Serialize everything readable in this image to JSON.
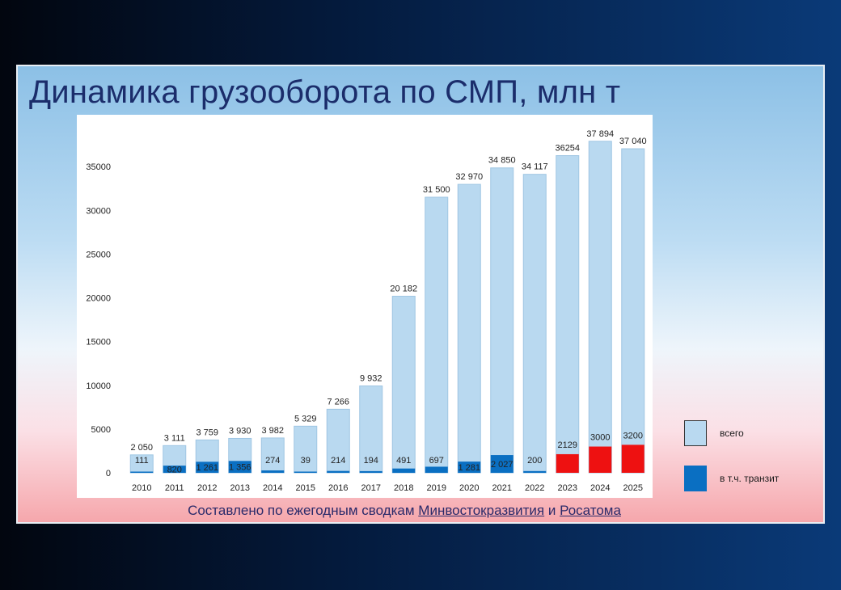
{
  "slide": {
    "title": "Динамика грузооборота по СМП, млн т",
    "source": {
      "prefix": "Составлено по ежегодным сводкам",
      "link1": "Минвостокразвития",
      "conjunction": "и",
      "link2": "Росатома"
    }
  },
  "colors": {
    "total": "#b9d9f0",
    "total_border": "#9fc6e3",
    "transit": "#0a6fc2",
    "forecast": "#ee1111"
  },
  "chart_data": {
    "type": "bar",
    "title": "Динамика грузооборота по СМП, млн т",
    "categories": [
      "2010",
      "2011",
      "2012",
      "2013",
      "2014",
      "2015",
      "2016",
      "2017",
      "2018",
      "2019",
      "2020",
      "2021",
      "2022",
      "2023",
      "2024",
      "2025"
    ],
    "series": [
      {
        "name": "всего",
        "values": [
          2050,
          3111,
          3759,
          3930,
          3982,
          5329,
          7266,
          9932,
          20182,
          31500,
          32970,
          34850,
          34117,
          36254,
          37894,
          37040
        ],
        "labels": [
          "2 050",
          "3 111",
          "3 759",
          "3 930",
          "3 982",
          "5 329",
          "7 266",
          "9 932",
          "20 182",
          "31 500",
          "32 970",
          "34 850",
          "34 117",
          "36254",
          "37 894",
          "37 040"
        ]
      },
      {
        "name": "в т.ч. транзит",
        "values": [
          111,
          820,
          1261,
          1356,
          274,
          39,
          214,
          194,
          491,
          697,
          1281,
          2027,
          200,
          2129,
          3000,
          3200
        ],
        "labels": [
          "111",
          "820",
          "1 261",
          "1 356",
          "274",
          "39",
          "214",
          "194",
          "491",
          "697",
          "1 281",
          "2 027",
          "200",
          "2129",
          "3000",
          "3200"
        ],
        "forecast_from_index": 13
      }
    ],
    "yticks": [
      0,
      5000,
      10000,
      15000,
      20000,
      25000,
      30000,
      35000
    ],
    "ylim": [
      0,
      40000
    ],
    "grid": false,
    "legend_position": "right"
  }
}
